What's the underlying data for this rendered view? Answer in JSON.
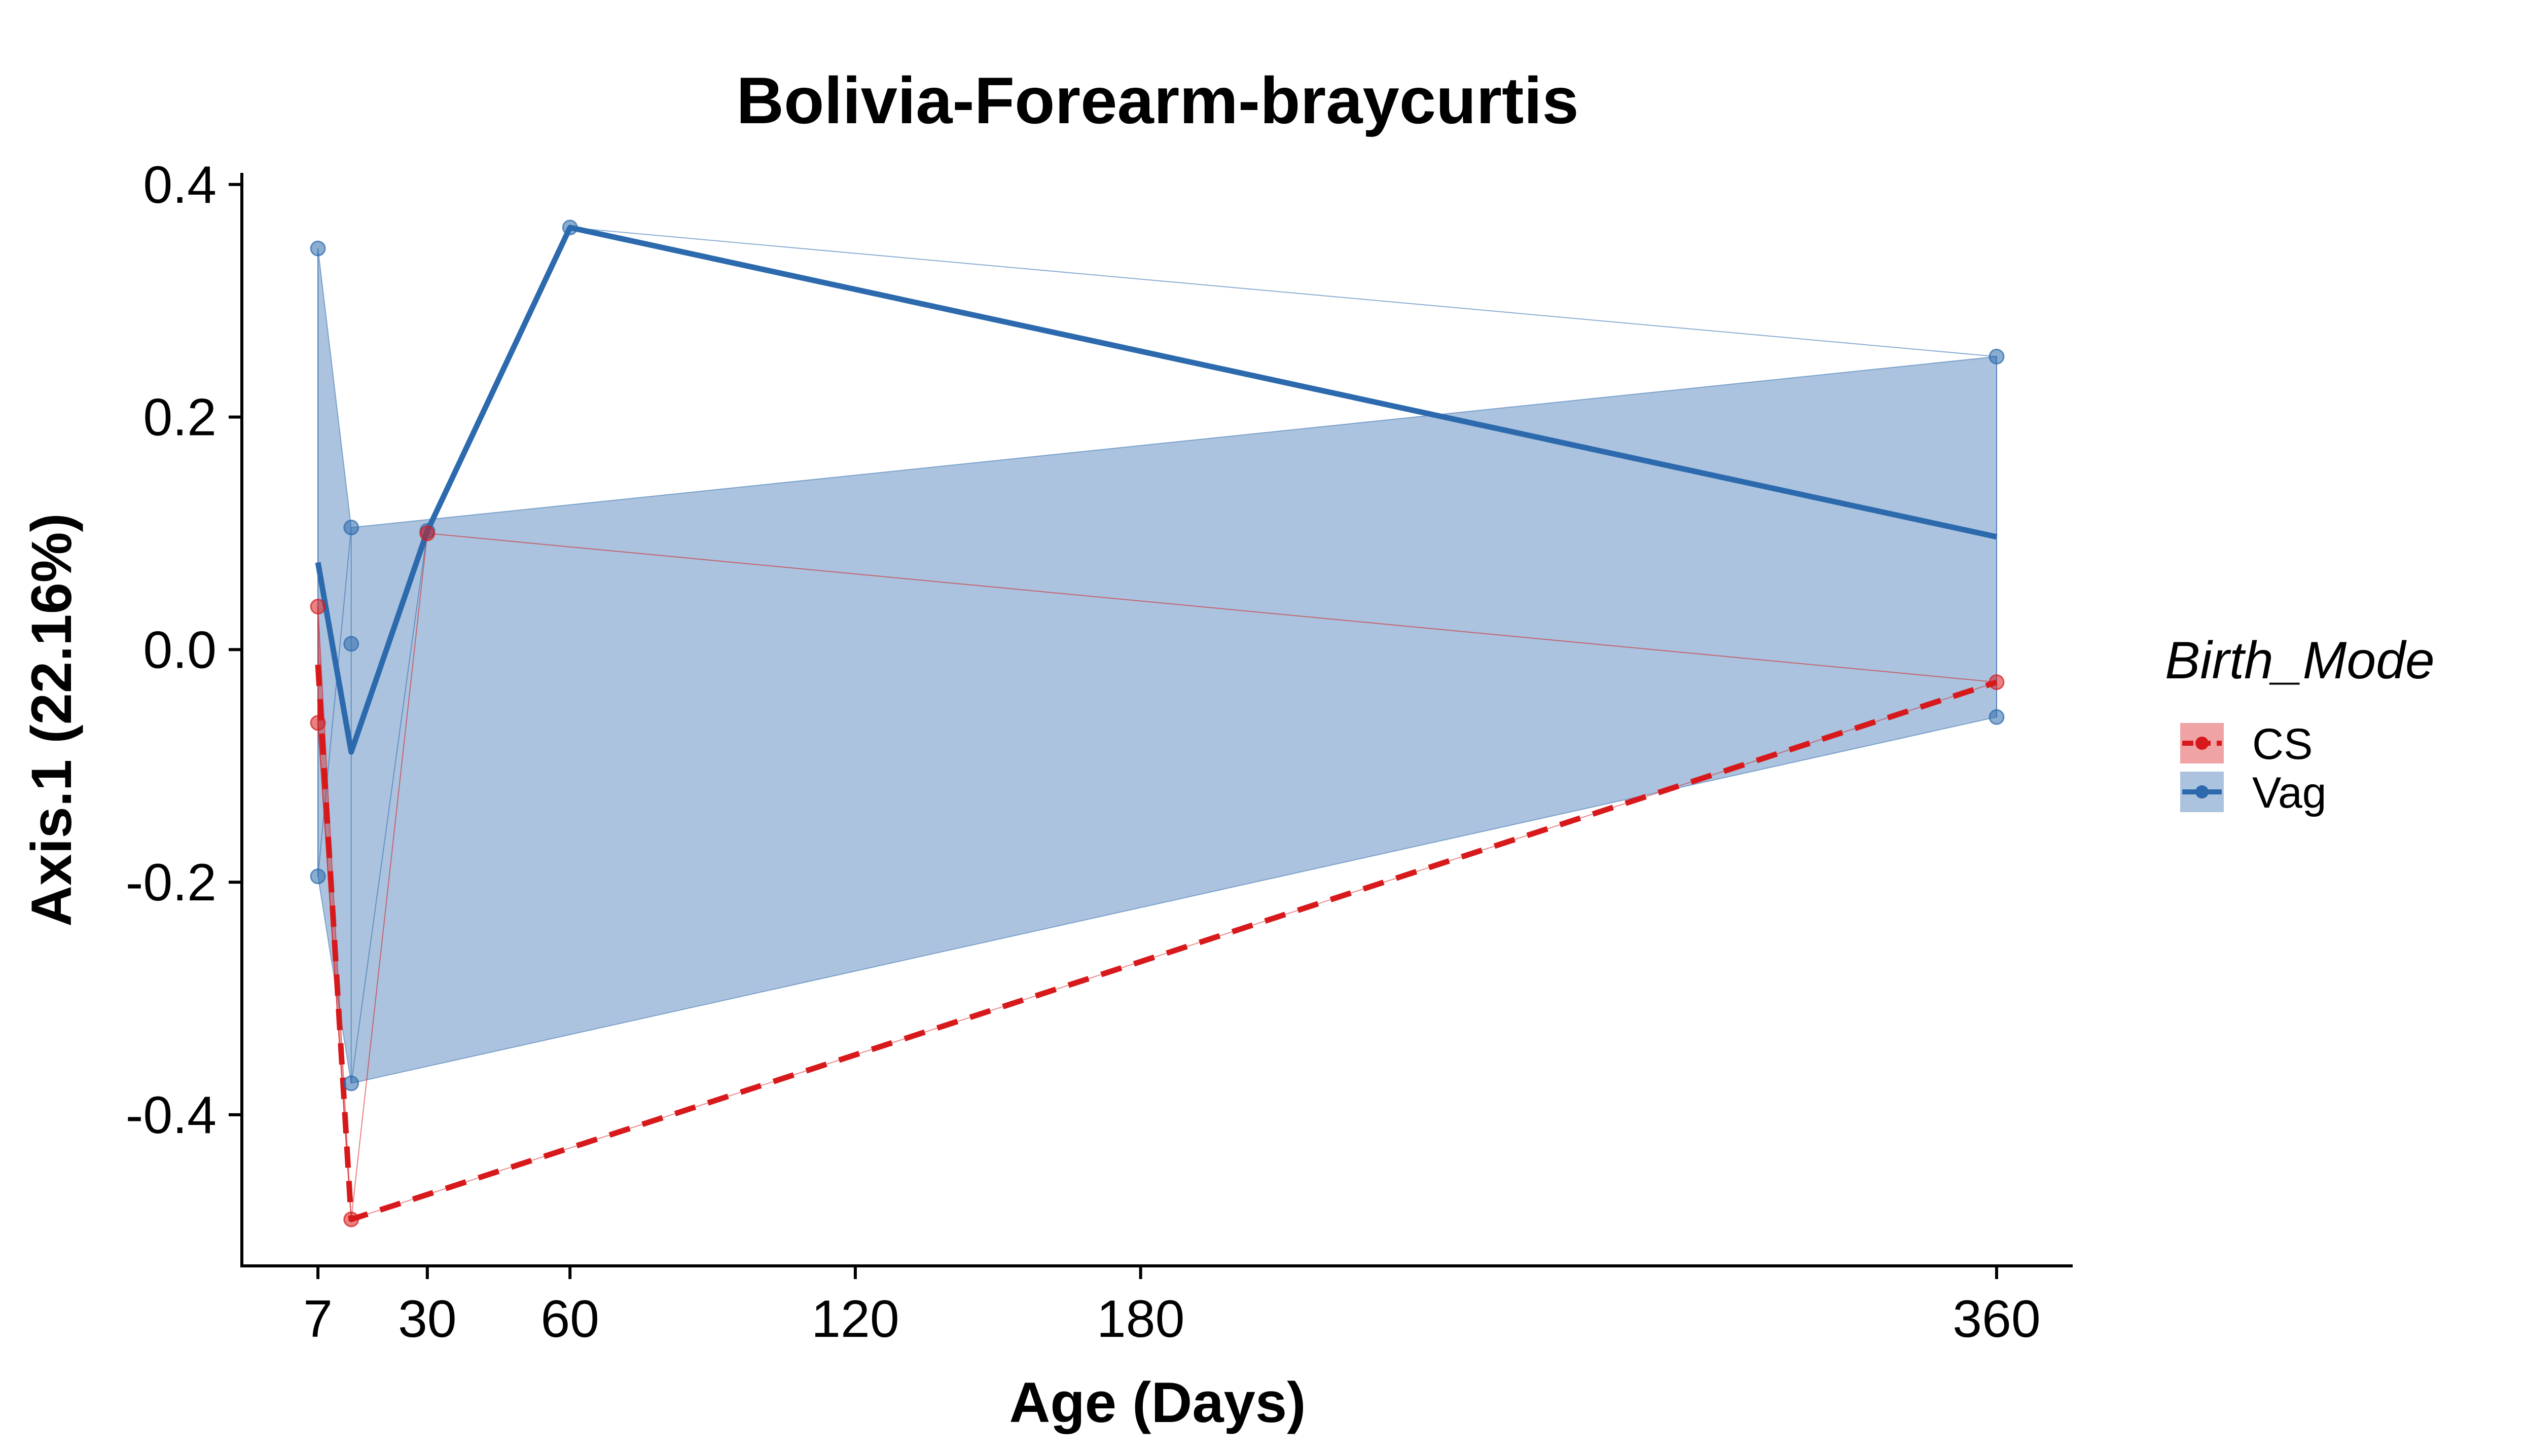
{
  "chart_data": {
    "type": "line",
    "title": "Bolivia-Forearm-braycurtis",
    "xlabel": "Age (Days)",
    "ylabel": "Axis.1 (22.16%)",
    "xlim": [
      -9,
      376
    ],
    "ylim": [
      -0.53,
      0.41
    ],
    "x_ticks": [
      7,
      30,
      60,
      120,
      180,
      360
    ],
    "x_tick_labels": [
      "7",
      "30",
      "60",
      "120",
      "180",
      "360"
    ],
    "y_ticks": [
      -0.4,
      -0.2,
      0.0,
      0.2,
      0.4
    ],
    "y_tick_labels": [
      "-0.4",
      "-0.2",
      "0.0",
      "0.2",
      "0.4"
    ],
    "grid": false,
    "legend": {
      "title": "Birth_Mode",
      "placement": "right",
      "entries": [
        "CS",
        "Vag"
      ]
    },
    "series": [
      {
        "name": "CS",
        "color": "#d7191c",
        "line_style": "dashed",
        "points": [
          {
            "x": 7,
            "y": 0.037
          },
          {
            "x": 7,
            "y": -0.063
          },
          {
            "x": 14,
            "y": -0.49
          },
          {
            "x": 30,
            "y": 0.1
          },
          {
            "x": 360,
            "y": -0.028
          }
        ],
        "mean_line": [
          {
            "x": 7,
            "y": -0.013
          },
          {
            "x": 14,
            "y": -0.49
          },
          {
            "x": 360,
            "y": -0.028
          }
        ],
        "ribbon": [
          {
            "x": 7,
            "low": -0.063,
            "high": 0.037
          },
          {
            "x": 14,
            "low": -0.49,
            "high": -0.49
          },
          {
            "x": 360,
            "low": -0.028,
            "high": -0.028
          }
        ]
      },
      {
        "name": "Vag",
        "color": "#2c6aad",
        "line_style": "solid",
        "points": [
          {
            "x": 7,
            "y": 0.345
          },
          {
            "x": 7,
            "y": -0.195
          },
          {
            "x": 14,
            "y": 0.105
          },
          {
            "x": 14,
            "y": 0.005
          },
          {
            "x": 14,
            "y": -0.373
          },
          {
            "x": 30,
            "y": 0.102
          },
          {
            "x": 60,
            "y": 0.363
          },
          {
            "x": 360,
            "y": 0.252
          },
          {
            "x": 360,
            "y": -0.058
          }
        ],
        "mean_line": [
          {
            "x": 7,
            "y": 0.075
          },
          {
            "x": 14,
            "y": -0.088
          },
          {
            "x": 30,
            "y": 0.102
          },
          {
            "x": 60,
            "y": 0.363
          },
          {
            "x": 360,
            "y": 0.097
          }
        ],
        "ribbon": [
          {
            "x": 7,
            "low": -0.195,
            "high": 0.345
          },
          {
            "x": 14,
            "low": -0.373,
            "high": 0.105
          },
          {
            "x": 360,
            "low": -0.058,
            "high": 0.252
          }
        ]
      }
    ]
  }
}
